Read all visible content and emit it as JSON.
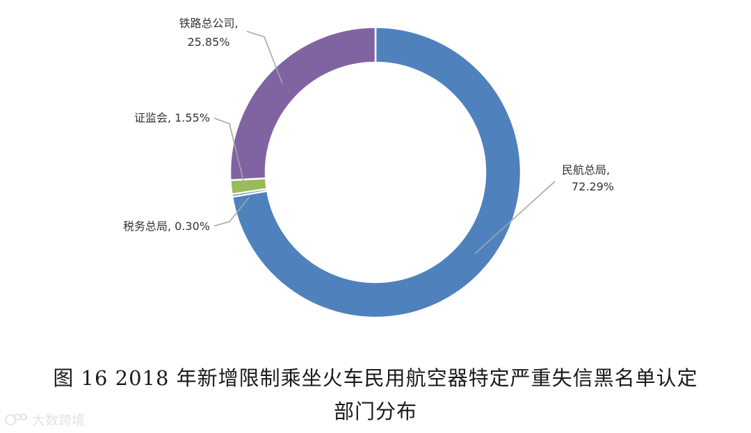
{
  "chart_data": {
    "type": "pie",
    "style": "donut",
    "title": "图 16 2018 年新增限制乘坐火车民用航空器特定严重失信黑名单认定部门分布",
    "slices": [
      {
        "label": "民航总局",
        "value": 72.29,
        "display": "72.29%",
        "color": "#4f81bd"
      },
      {
        "label": "税务总局",
        "value": 0.3,
        "display": "0.30%",
        "color": "#4f81bd"
      },
      {
        "label": "证监会",
        "value": 1.55,
        "display": "1.55%",
        "color": "#9bbb59"
      },
      {
        "label": "铁路总公司",
        "value": 25.85,
        "display": "25.85%",
        "color": "#8064a2"
      }
    ],
    "legend": "none"
  },
  "caption": {
    "line1": "图 16   2018 年新增限制乘坐火车民用航空器特定严重失信黑名单认定",
    "line2": "部门分布"
  },
  "watermark": {
    "text": "大数跨境"
  },
  "colors": {
    "leader_line": "#a6a6a6",
    "label_text": "#333333",
    "watermark": "#e3e3e3"
  }
}
